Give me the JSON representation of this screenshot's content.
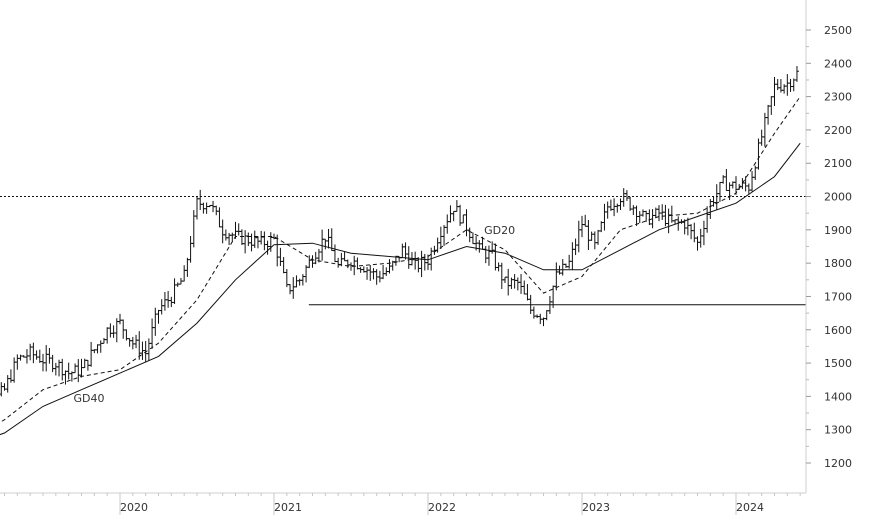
{
  "chart_data": {
    "type": "ohlc",
    "title": "",
    "xlabel": "",
    "ylabel": "",
    "ylim": [
      1200,
      2500
    ],
    "y_ticks": [
      1200,
      1300,
      1400,
      1500,
      1600,
      1700,
      1800,
      1900,
      2000,
      2100,
      2200,
      2300,
      2400,
      2500
    ],
    "x_ticks": [
      "2020",
      "2021",
      "2022",
      "2023",
      "2024"
    ],
    "x_range": [
      "2019-01",
      "2024-06"
    ],
    "grid": false,
    "legend": "none",
    "reference_lines": [
      {
        "style": "dotted",
        "value": 2000
      },
      {
        "style": "solid",
        "value": 1675,
        "from": "2021-02",
        "to": "2024-06"
      }
    ],
    "moving_averages": [
      {
        "name": "GD20",
        "style": "dashed",
        "points": [
          [
            "2019-01",
            1260
          ],
          [
            "2019-04",
            1330
          ],
          [
            "2019-07",
            1420
          ],
          [
            "2019-10",
            1460
          ],
          [
            "2020-01",
            1480
          ],
          [
            "2020-04",
            1560
          ],
          [
            "2020-07",
            1690
          ],
          [
            "2020-10",
            1880
          ],
          [
            "2021-01",
            1880
          ],
          [
            "2021-04",
            1810
          ],
          [
            "2021-07",
            1790
          ],
          [
            "2021-10",
            1800
          ],
          [
            "2022-01",
            1820
          ],
          [
            "2022-04",
            1900
          ],
          [
            "2022-07",
            1840
          ],
          [
            "2022-10",
            1710
          ],
          [
            "2023-01",
            1760
          ],
          [
            "2023-04",
            1900
          ],
          [
            "2023-07",
            1940
          ],
          [
            "2023-10",
            1950
          ],
          [
            "2024-01",
            2010
          ],
          [
            "2024-04",
            2190
          ],
          [
            "2024-06",
            2300
          ]
        ]
      },
      {
        "name": "GD40",
        "style": "solid",
        "points": [
          [
            "2019-01",
            1250
          ],
          [
            "2019-04",
            1290
          ],
          [
            "2019-07",
            1370
          ],
          [
            "2019-10",
            1420
          ],
          [
            "2020-01",
            1470
          ],
          [
            "2020-04",
            1520
          ],
          [
            "2020-07",
            1620
          ],
          [
            "2020-10",
            1750
          ],
          [
            "2021-01",
            1855
          ],
          [
            "2021-04",
            1860
          ],
          [
            "2021-07",
            1830
          ],
          [
            "2021-10",
            1820
          ],
          [
            "2022-01",
            1810
          ],
          [
            "2022-04",
            1850
          ],
          [
            "2022-07",
            1830
          ],
          [
            "2022-10",
            1780
          ],
          [
            "2023-01",
            1780
          ],
          [
            "2023-04",
            1840
          ],
          [
            "2023-07",
            1900
          ],
          [
            "2023-10",
            1940
          ],
          [
            "2024-01",
            1980
          ],
          [
            "2024-04",
            2060
          ],
          [
            "2024-06",
            2160
          ]
        ]
      }
    ],
    "annotations": [
      {
        "text": "GD40",
        "x": "2019-10",
        "y": 1395
      },
      {
        "text": "GD20",
        "x": "2022-06",
        "y": 1900
      }
    ],
    "price_path": [
      [
        "2019-01",
        1270
      ],
      [
        "2019-02",
        1290
      ],
      [
        "2019-03",
        1380
      ],
      [
        "2019-04",
        1420
      ],
      [
        "2019-05",
        1510
      ],
      [
        "2019-06",
        1530
      ],
      [
        "2019-07",
        1510
      ],
      [
        "2019-08",
        1500
      ],
      [
        "2019-09",
        1470
      ],
      [
        "2019-10",
        1480
      ],
      [
        "2019-11",
        1540
      ],
      [
        "2019-12",
        1600
      ],
      [
        "2020-01",
        1620
      ],
      [
        "2020-02",
        1560
      ],
      [
        "2020-03",
        1530
      ],
      [
        "2020-04",
        1660
      ],
      [
        "2020-05",
        1700
      ],
      [
        "2020-06",
        1760
      ],
      [
        "2020-07",
        1980
      ],
      [
        "2020-08",
        1980
      ],
      [
        "2020-09",
        1900
      ],
      [
        "2020-10",
        1880
      ],
      [
        "2020-11",
        1870
      ],
      [
        "2020-12",
        1860
      ],
      [
        "2021-01",
        1870
      ],
      [
        "2021-02",
        1720
      ],
      [
        "2021-03",
        1750
      ],
      [
        "2021-04",
        1820
      ],
      [
        "2021-05",
        1880
      ],
      [
        "2021-06",
        1790
      ],
      [
        "2021-07",
        1810
      ],
      [
        "2021-08",
        1790
      ],
      [
        "2021-09",
        1760
      ],
      [
        "2021-10",
        1780
      ],
      [
        "2021-11",
        1840
      ],
      [
        "2021-12",
        1790
      ],
      [
        "2022-01",
        1810
      ],
      [
        "2022-02",
        1900
      ],
      [
        "2022-03",
        1970
      ],
      [
        "2022-04",
        1910
      ],
      [
        "2022-05",
        1840
      ],
      [
        "2022-06",
        1820
      ],
      [
        "2022-07",
        1740
      ],
      [
        "2022-08",
        1740
      ],
      [
        "2022-09",
        1660
      ],
      [
        "2022-10",
        1640
      ],
      [
        "2022-11",
        1760
      ],
      [
        "2022-12",
        1800
      ],
      [
        "2023-01",
        1920
      ],
      [
        "2023-02",
        1850
      ],
      [
        "2023-03",
        1970
      ],
      [
        "2023-04",
        2000
      ],
      [
        "2023-05",
        1970
      ],
      [
        "2023-06",
        1930
      ],
      [
        "2023-07",
        1950
      ],
      [
        "2023-08",
        1920
      ],
      [
        "2023-09",
        1920
      ],
      [
        "2023-10",
        1860
      ],
      [
        "2023-11",
        1980
      ],
      [
        "2023-12",
        2040
      ],
      [
        "2024-01",
        2030
      ],
      [
        "2024-02",
        2030
      ],
      [
        "2024-03",
        2180
      ],
      [
        "2024-04",
        2330
      ],
      [
        "2024-05",
        2340
      ],
      [
        "2024-06",
        2380
      ]
    ]
  }
}
